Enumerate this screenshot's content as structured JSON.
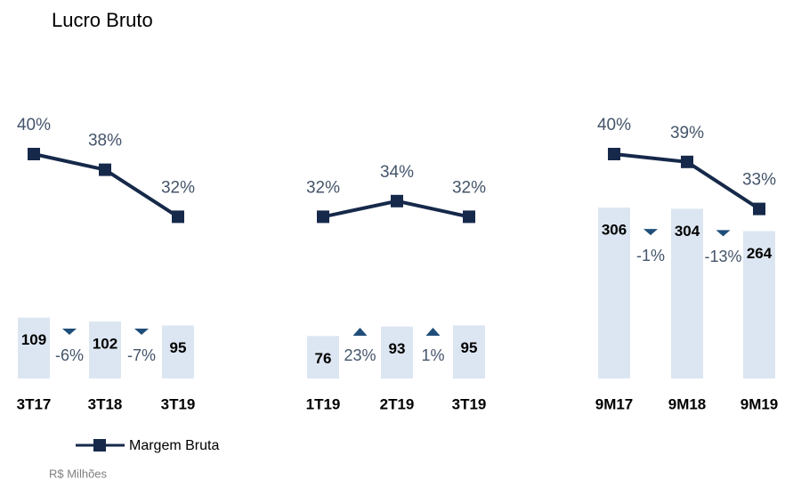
{
  "title": "Lucro Bruto",
  "note": "R$ Milhões",
  "legend": {
    "name": "Margem Bruta",
    "color": "#16294a"
  },
  "bar_color": "#dce6f2",
  "arrow_color": "#1f4e79",
  "chart_data": [
    {
      "type": "combo",
      "categories": [
        "3T17",
        "3T18",
        "3T19"
      ],
      "values": [
        109,
        102,
        95
      ],
      "margin": [
        40,
        38,
        32
      ],
      "margin_labels": [
        "40%",
        "38%",
        "32%"
      ],
      "changes": [
        -6,
        -7
      ],
      "change_labels": [
        "-6%",
        "-7%"
      ]
    },
    {
      "type": "combo",
      "categories": [
        "1T19",
        "2T19",
        "3T19"
      ],
      "values": [
        76,
        93,
        95
      ],
      "margin": [
        32,
        34,
        32
      ],
      "margin_labels": [
        "32%",
        "34%",
        "32%"
      ],
      "changes": [
        23,
        1
      ],
      "change_labels": [
        "23%",
        "1%"
      ]
    },
    {
      "type": "combo",
      "categories": [
        "9M17",
        "9M18",
        "9M19"
      ],
      "values": [
        306,
        304,
        264
      ],
      "margin": [
        40,
        39,
        33
      ],
      "margin_labels": [
        "40%",
        "39%",
        "33%"
      ],
      "changes": [
        -1,
        -13
      ],
      "change_labels": [
        "-1%",
        "-13%"
      ]
    }
  ]
}
